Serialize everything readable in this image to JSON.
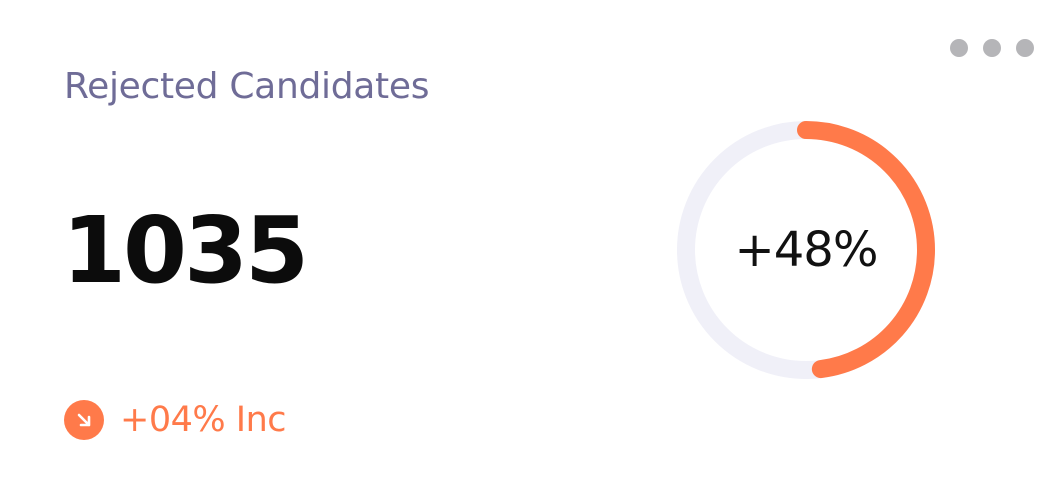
{
  "card": {
    "title": "Rejected Candidates",
    "value": "1035",
    "trend": {
      "text": "+04% Inc",
      "icon": "arrow-down-right-icon",
      "color": "#ff7a4a"
    },
    "progress": {
      "label": "+48%",
      "value_percent": 48,
      "track_color": "#f0f0f8",
      "fill_color": "#ff7a4a"
    },
    "menu_icon": "more-horizontal-icon"
  },
  "colors": {
    "title": "#6f6c97",
    "value": "#0c0c0c",
    "accent": "#ff7a4a"
  }
}
